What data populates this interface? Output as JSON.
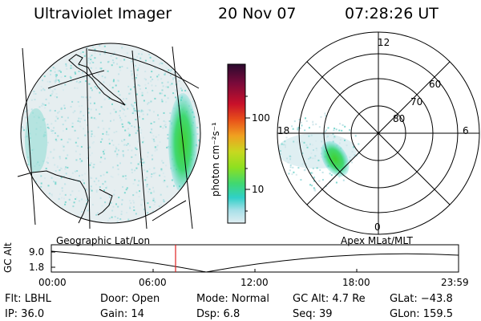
{
  "header": {
    "instrument": "Ultraviolet Imager",
    "date": "20 Nov 07",
    "time": "07:28:26 UT"
  },
  "left_panel": {
    "label": "Geographic Lat/Lon"
  },
  "right_panel": {
    "label": "Apex  MLat/MLT",
    "mlt_labels": {
      "top": "12",
      "left": "18",
      "right": "6",
      "bottom": "0"
    },
    "lat_labels": [
      "60",
      "70",
      "80"
    ]
  },
  "colorbar": {
    "unit_label": "photon cm⁻²s⁻¹",
    "tick_labels": [
      "100",
      "10"
    ],
    "scale": "log",
    "colors": [
      "#2a0a2e",
      "#7a0a3a",
      "#c8102a",
      "#e8501a",
      "#f0a020",
      "#c8d820",
      "#8de020",
      "#40d870",
      "#30d0c8",
      "#a8e0e8",
      "#e0eef2"
    ]
  },
  "altitude_plot": {
    "ylabel": "GC Alt",
    "y_ticks": [
      "9.0",
      "1.8"
    ],
    "x_ticks": [
      "00:00",
      "06:00",
      "12:00",
      "18:00",
      "23:59"
    ],
    "marker_time": "07:28",
    "marker_color": "#e02020"
  },
  "info": {
    "flt": "Flt: LBHL",
    "ip": "IP: 36.0",
    "door": "Door: Open",
    "gain": "Gain: 14",
    "mode": "Mode: Normal",
    "dsp": "Dsp:     6.8",
    "gc_alt": "GC Alt: 4.7 Re",
    "seq": "Seq: 39",
    "glat": "GLat: −43.8",
    "glon": "GLon: 159.5"
  }
}
